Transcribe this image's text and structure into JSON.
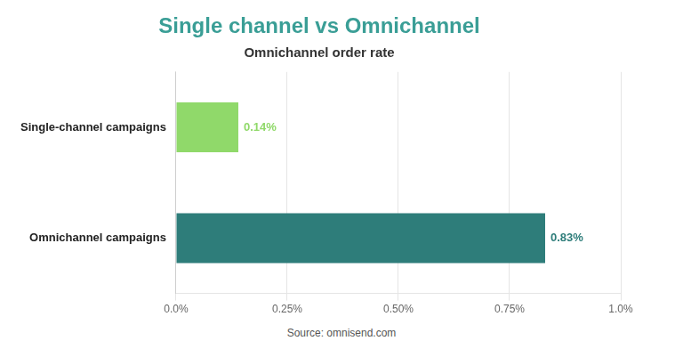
{
  "chart_data": {
    "type": "bar",
    "orientation": "horizontal",
    "title": "Single channel vs Omnichannel",
    "subtitle": "Omnichannel order rate",
    "categories": [
      "Omnichannel campaigns",
      "Single-channel campaigns"
    ],
    "values": [
      0.83,
      0.14
    ],
    "value_labels": [
      "0.83%",
      "0.14%"
    ],
    "colors": [
      "#2e7d7a",
      "#90d96a"
    ],
    "xlim": [
      0,
      1.0
    ],
    "xticks": [
      {
        "value": 0.0,
        "label": "0.0%"
      },
      {
        "value": 0.25,
        "label": "0.25%"
      },
      {
        "value": 0.5,
        "label": "0.50%"
      },
      {
        "value": 0.75,
        "label": "0.75%"
      },
      {
        "value": 1.0,
        "label": "1.0%"
      }
    ],
    "grid": true,
    "data_labels": true,
    "annotations": [
      "Source: omnisend.com"
    ]
  }
}
